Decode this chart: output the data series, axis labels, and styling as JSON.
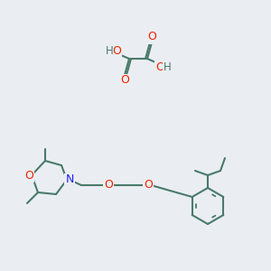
{
  "bg_color": "#eaeef2",
  "bond_color": "#4a7a6a",
  "atom_colors": {
    "O": "#ee2200",
    "N": "#2222ee",
    "H": "#4a7a6a",
    "C": "#4a7a6a"
  }
}
